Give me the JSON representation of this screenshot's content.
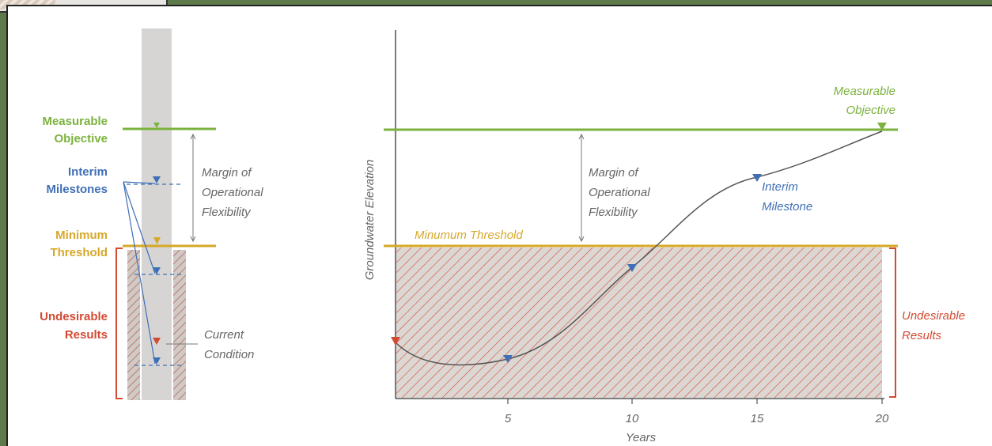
{
  "left_panel": {
    "labels": {
      "measurable_objective_1": "Measurable",
      "measurable_objective_2": "Objective",
      "interim_milestones_1": "Interim",
      "interim_milestones_2": "Milestones",
      "minimum_threshold_1": "Minimum",
      "minimum_threshold_2": "Threshold",
      "undesirable_results_1": "Undesirable",
      "undesirable_results_2": "Results",
      "margin_1": "Margin of",
      "margin_2": "Operational",
      "margin_3": "Flexibility",
      "current_condition_1": "Current",
      "current_condition_2": "Condition"
    }
  },
  "chart": {
    "ylabel": "Groundwater Elevation",
    "xlabel": "Years",
    "x_ticks": [
      "5",
      "10",
      "15",
      "20"
    ],
    "measurable_objective_1": "Measurable",
    "measurable_objective_2": "Objective",
    "minimum_threshold": "Minumum Threshold",
    "interim_milestone_1": "Interim",
    "interim_milestone_2": "Milestone",
    "margin_1": "Margin of",
    "margin_2": "Operational",
    "margin_3": "Flexibility",
    "undesirable_1": "Undesirable",
    "undesirable_2": "Results"
  },
  "colors": {
    "objective": "#7bb23e",
    "threshold": "#d6a829",
    "milestone": "#3f6fb5",
    "undesirable": "#d34a32",
    "hatch_fill": "#dcd7d3"
  }
}
